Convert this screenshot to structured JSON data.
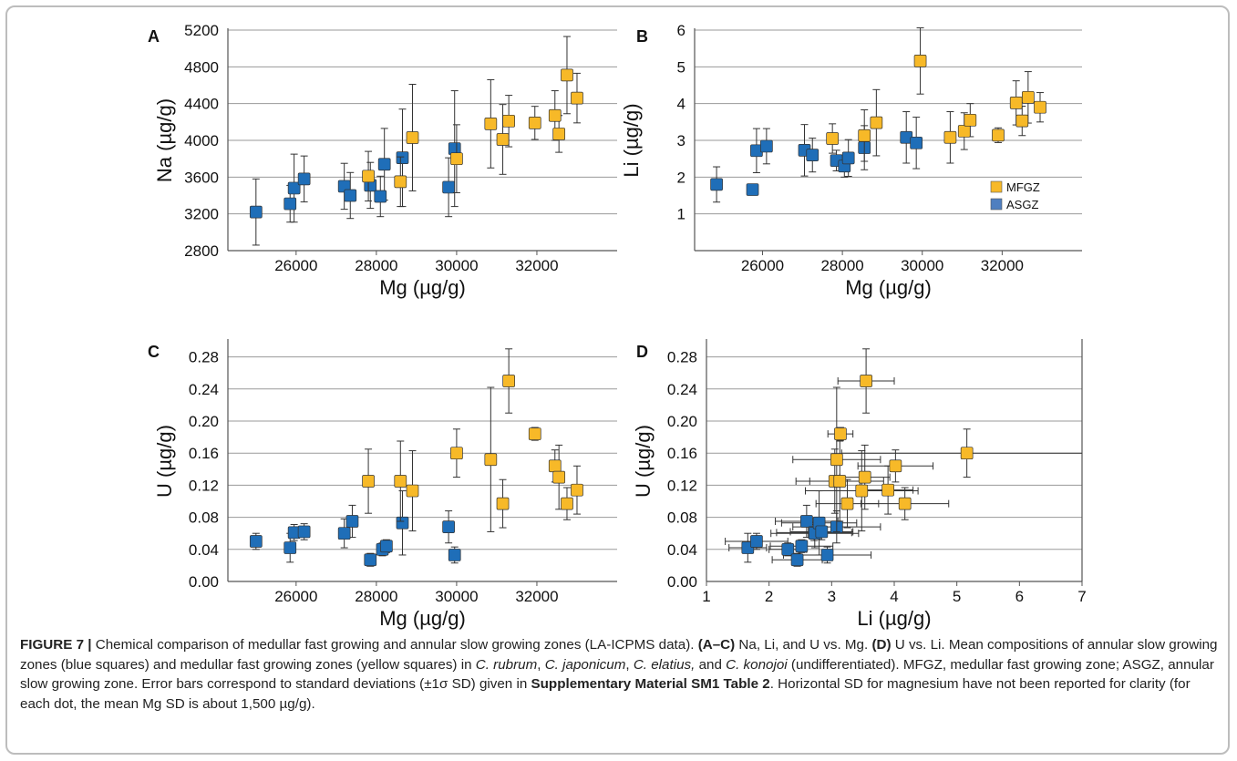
{
  "colors": {
    "mfgz": "#F7B928",
    "asgz": "#1F6EB8",
    "asgz_legend": "#4F7FC0",
    "grid": "#9a9a9a",
    "frame": "#bdbdbd"
  },
  "chart_data": [
    {
      "panel": "A",
      "type": "scatter",
      "xlabel": "Mg (µg/g)",
      "ylabel": "Na (µg/g)",
      "xlim": [
        24300,
        34000
      ],
      "ylim": [
        2800,
        5200
      ],
      "xticks": [
        26000,
        28000,
        30000,
        32000
      ],
      "yticks": [
        2800,
        3200,
        3600,
        4000,
        4400,
        4800,
        5200
      ],
      "ytick_labels": [
        "2800",
        "3200",
        "3600",
        "4000",
        "4400",
        "4800",
        "5200"
      ],
      "grid": "horizontal",
      "series": [
        {
          "key": "asgz",
          "points": [
            {
              "x": 25000,
              "y": 3220,
              "ey": 360
            },
            {
              "x": 25850,
              "y": 3310,
              "ey": 200
            },
            {
              "x": 25950,
              "y": 3480,
              "ey": 370
            },
            {
              "x": 26200,
              "y": 3580,
              "ey": 250
            },
            {
              "x": 27200,
              "y": 3500,
              "ey": 250
            },
            {
              "x": 27350,
              "y": 3400,
              "ey": 250
            },
            {
              "x": 27850,
              "y": 3510,
              "ey": 250
            },
            {
              "x": 28100,
              "y": 3390,
              "ey": 220
            },
            {
              "x": 28200,
              "y": 3740,
              "ey": 390
            },
            {
              "x": 28650,
              "y": 3810,
              "ey": 530
            },
            {
              "x": 29800,
              "y": 3490,
              "ey": 320
            },
            {
              "x": 29950,
              "y": 3910,
              "ey": 630
            }
          ]
        },
        {
          "key": "mfgz",
          "points": [
            {
              "x": 27800,
              "y": 3610,
              "ey": 270
            },
            {
              "x": 28600,
              "y": 3550,
              "ey": 270
            },
            {
              "x": 28900,
              "y": 4030,
              "ey": 580
            },
            {
              "x": 30000,
              "y": 3800,
              "ey": 370
            },
            {
              "x": 30850,
              "y": 4180,
              "ey": 480
            },
            {
              "x": 31150,
              "y": 4010,
              "ey": 380
            },
            {
              "x": 31300,
              "y": 4210,
              "ey": 280
            },
            {
              "x": 31950,
              "y": 4190,
              "ey": 180
            },
            {
              "x": 32450,
              "y": 4270,
              "ey": 270
            },
            {
              "x": 32550,
              "y": 4070,
              "ey": 200
            },
            {
              "x": 32750,
              "y": 4710,
              "ey": 420
            },
            {
              "x": 33000,
              "y": 4460,
              "ey": 270
            }
          ]
        }
      ]
    },
    {
      "panel": "B",
      "type": "scatter",
      "xlabel": "Mg (µg/g)",
      "ylabel": "Li (µg/g)",
      "xlim": [
        24300,
        34000
      ],
      "ylim": [
        0,
        6
      ],
      "xticks": [
        26000,
        28000,
        30000,
        32000
      ],
      "yticks": [
        1,
        2,
        3,
        4,
        5,
        6
      ],
      "ytick_labels": [
        "1",
        "2",
        "3",
        "4",
        "5",
        "6"
      ],
      "grid": "horizontal",
      "legend": "inside-right",
      "series": [
        {
          "key": "asgz",
          "points": [
            {
              "x": 24850,
              "y": 1.8,
              "ey": 0.48
            },
            {
              "x": 25750,
              "y": 1.66,
              "ey": 0.15
            },
            {
              "x": 25850,
              "y": 2.72,
              "ey": 0.6
            },
            {
              "x": 26100,
              "y": 2.84,
              "ey": 0.48
            },
            {
              "x": 27050,
              "y": 2.73,
              "ey": 0.7
            },
            {
              "x": 27250,
              "y": 2.6,
              "ey": 0.46
            },
            {
              "x": 27850,
              "y": 2.45,
              "ey": 0.28
            },
            {
              "x": 28050,
              "y": 2.3,
              "ey": 0.3
            },
            {
              "x": 28150,
              "y": 2.52,
              "ey": 0.5
            },
            {
              "x": 28550,
              "y": 2.8,
              "ey": 0.6
            },
            {
              "x": 29600,
              "y": 3.08,
              "ey": 0.7
            },
            {
              "x": 29850,
              "y": 2.93,
              "ey": 0.7
            }
          ]
        },
        {
          "key": "mfgz",
          "points": [
            {
              "x": 27750,
              "y": 3.05,
              "ey": 0.4
            },
            {
              "x": 28550,
              "y": 3.13,
              "ey": 0.7
            },
            {
              "x": 28850,
              "y": 3.48,
              "ey": 0.9
            },
            {
              "x": 29950,
              "y": 5.16,
              "ey": 0.9
            },
            {
              "x": 30700,
              "y": 3.08,
              "ey": 0.7
            },
            {
              "x": 31050,
              "y": 3.25,
              "ey": 0.5
            },
            {
              "x": 31200,
              "y": 3.55,
              "ey": 0.45
            },
            {
              "x": 31900,
              "y": 3.14,
              "ey": 0.2
            },
            {
              "x": 32350,
              "y": 4.02,
              "ey": 0.6
            },
            {
              "x": 32500,
              "y": 3.53,
              "ey": 0.4
            },
            {
              "x": 32650,
              "y": 4.17,
              "ey": 0.7
            },
            {
              "x": 32950,
              "y": 3.9,
              "ey": 0.4
            }
          ]
        }
      ]
    },
    {
      "panel": "C",
      "type": "scatter",
      "xlabel": "Mg (µg/g)",
      "ylabel": "U (µg/g)",
      "xlim": [
        24300,
        34000
      ],
      "ylim": [
        0,
        0.3
      ],
      "xticks": [
        26000,
        28000,
        30000,
        32000
      ],
      "yticks": [
        0,
        0.04,
        0.08,
        0.12,
        0.16,
        0.2,
        0.24,
        0.28
      ],
      "ytick_labels": [
        "0.00",
        "0.04",
        "0.08",
        "0.12",
        "0.16",
        "0.20",
        "0.24",
        "0.28"
      ],
      "grid": "horizontal",
      "series": [
        {
          "key": "asgz",
          "points": [
            {
              "x": 25000,
              "y": 0.05,
              "ey": 0.01
            },
            {
              "x": 25850,
              "y": 0.042,
              "ey": 0.018
            },
            {
              "x": 25950,
              "y": 0.061,
              "ey": 0.01
            },
            {
              "x": 26200,
              "y": 0.062,
              "ey": 0.01
            },
            {
              "x": 27200,
              "y": 0.06,
              "ey": 0.018
            },
            {
              "x": 27400,
              "y": 0.075,
              "ey": 0.02
            },
            {
              "x": 27850,
              "y": 0.027,
              "ey": 0.008
            },
            {
              "x": 28150,
              "y": 0.04,
              "ey": 0.008
            },
            {
              "x": 28250,
              "y": 0.044,
              "ey": 0.008
            },
            {
              "x": 28650,
              "y": 0.073,
              "ey": 0.04
            },
            {
              "x": 29800,
              "y": 0.068,
              "ey": 0.02
            },
            {
              "x": 29950,
              "y": 0.033,
              "ey": 0.01
            }
          ]
        },
        {
          "key": "mfgz",
          "points": [
            {
              "x": 27800,
              "y": 0.125,
              "ey": 0.04
            },
            {
              "x": 28600,
              "y": 0.125,
              "ey": 0.05
            },
            {
              "x": 28900,
              "y": 0.113,
              "ey": 0.05
            },
            {
              "x": 30000,
              "y": 0.16,
              "ey": 0.03
            },
            {
              "x": 30850,
              "y": 0.152,
              "ey": 0.09
            },
            {
              "x": 31150,
              "y": 0.097,
              "ey": 0.03
            },
            {
              "x": 31300,
              "y": 0.25,
              "ey": 0.04
            },
            {
              "x": 31950,
              "y": 0.184,
              "ey": 0.008
            },
            {
              "x": 32450,
              "y": 0.144,
              "ey": 0.02
            },
            {
              "x": 32550,
              "y": 0.13,
              "ey": 0.04
            },
            {
              "x": 32750,
              "y": 0.097,
              "ey": 0.02
            },
            {
              "x": 33000,
              "y": 0.114,
              "ey": 0.03
            }
          ]
        }
      ]
    },
    {
      "panel": "D",
      "type": "scatter",
      "xlabel": "Li (µg/g)",
      "ylabel": "U (µg/g)",
      "xlim": [
        1,
        7
      ],
      "ylim": [
        0,
        0.3
      ],
      "xticks": [
        1,
        2,
        3,
        4,
        5,
        6,
        7
      ],
      "yticks": [
        0,
        0.04,
        0.08,
        0.12,
        0.16,
        0.2,
        0.24,
        0.28
      ],
      "ytick_labels": [
        "0.00",
        "0.04",
        "0.08",
        "0.12",
        "0.16",
        "0.20",
        "0.24",
        "0.28"
      ],
      "grid": "horizontal",
      "axis_box": true,
      "series": [
        {
          "key": "asgz",
          "points": [
            {
              "x": 1.66,
              "y": 0.042,
              "ex": 0.3,
              "ey": 0.018
            },
            {
              "x": 1.8,
              "y": 0.05,
              "ex": 0.5,
              "ey": 0.01
            },
            {
              "x": 2.3,
              "y": 0.04,
              "ex": 0.3,
              "ey": 0.008
            },
            {
              "x": 2.45,
              "y": 0.027,
              "ex": 0.4,
              "ey": 0.008
            },
            {
              "x": 2.52,
              "y": 0.044,
              "ex": 0.5,
              "ey": 0.008
            },
            {
              "x": 2.6,
              "y": 0.075,
              "ex": 0.5,
              "ey": 0.02
            },
            {
              "x": 2.72,
              "y": 0.061,
              "ex": 0.6,
              "ey": 0.01
            },
            {
              "x": 2.73,
              "y": 0.06,
              "ex": 0.7,
              "ey": 0.018
            },
            {
              "x": 2.8,
              "y": 0.073,
              "ex": 0.6,
              "ey": 0.04
            },
            {
              "x": 2.84,
              "y": 0.062,
              "ex": 0.5,
              "ey": 0.01
            },
            {
              "x": 2.93,
              "y": 0.033,
              "ex": 0.7,
              "ey": 0.01
            },
            {
              "x": 3.08,
              "y": 0.068,
              "ex": 0.7,
              "ey": 0.02
            }
          ]
        },
        {
          "key": "mfgz",
          "points": [
            {
              "x": 3.05,
              "y": 0.125,
              "ex": 0.4,
              "ey": 0.04
            },
            {
              "x": 3.08,
              "y": 0.152,
              "ex": 0.7,
              "ey": 0.09
            },
            {
              "x": 3.13,
              "y": 0.125,
              "ex": 0.7,
              "ey": 0.05
            },
            {
              "x": 3.14,
              "y": 0.184,
              "ex": 0.2,
              "ey": 0.008
            },
            {
              "x": 3.25,
              "y": 0.097,
              "ex": 0.5,
              "ey": 0.03
            },
            {
              "x": 3.48,
              "y": 0.113,
              "ex": 0.9,
              "ey": 0.05
            },
            {
              "x": 3.53,
              "y": 0.13,
              "ex": 0.4,
              "ey": 0.04
            },
            {
              "x": 3.55,
              "y": 0.25,
              "ex": 0.45,
              "ey": 0.04
            },
            {
              "x": 3.9,
              "y": 0.114,
              "ex": 0.4,
              "ey": 0.03
            },
            {
              "x": 4.02,
              "y": 0.144,
              "ex": 0.6,
              "ey": 0.02
            },
            {
              "x": 4.17,
              "y": 0.097,
              "ex": 0.7,
              "ey": 0.02
            },
            {
              "x": 5.16,
              "y": 0.16,
              "ex": 2.0,
              "ey": 0.03
            }
          ]
        }
      ]
    }
  ],
  "legend": {
    "mfgz_label": "MFGZ",
    "asgz_label": "ASGZ"
  },
  "caption": {
    "fig_label": "FIGURE 7 |",
    "text_1": " Chemical comparison of medullar fast growing and annular slow growing zones (LA-ICPMS data). ",
    "bold_ac": "(A–C)",
    "text_2": " Na, Li, and U vs. Mg. ",
    "bold_d": "(D)",
    "text_3": " U vs. Li. Mean compositions of annular slow growing zones (blue squares) and medullar fast growing zones (yellow squares) in ",
    "sp1": "C. rubrum",
    "text_4": ", ",
    "sp2": "C. japonicum",
    "text_5": ", ",
    "sp3": "C. elatius,",
    "text_6": " and ",
    "sp4": "C. konojoi",
    "text_7": " (undifferentiated). MFGZ, medullar fast growing zone; ASGZ, annular slow growing zone. Error bars correspond to standard deviations (±1σ SD) given in ",
    "bold_ref": "Supplementary Material SM1 Table 2",
    "text_8": ". Horizontal SD for magnesium have not been reported for clarity (for each dot, the mean Mg SD is about 1,500 µg/g)."
  }
}
